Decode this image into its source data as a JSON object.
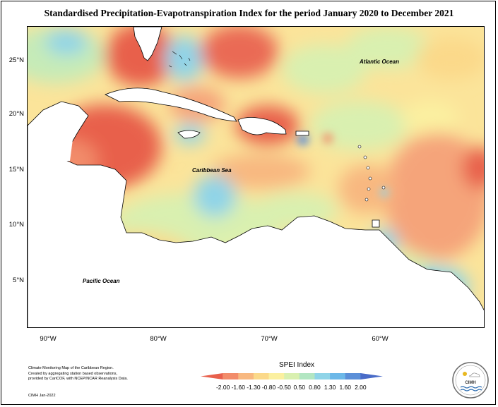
{
  "title": "Standardised Precipitation-Evapotranspiration Index for the period January 2020 to December 2021",
  "map": {
    "lat_labels": [
      "25°N",
      "20°N",
      "15°N",
      "10°N",
      "5°N"
    ],
    "lon_labels": [
      "90°W",
      "80°W",
      "70°W",
      "60°W"
    ],
    "ocean_labels": {
      "atlantic": "Atlantic Ocean",
      "caribbean": "Caribbean Sea",
      "pacific": "Pacific Ocean"
    }
  },
  "legend": {
    "title": "SPEI Index",
    "ticks": [
      "-2.00",
      "-1.60",
      "-1.30",
      "-0.80",
      "-0.50",
      "0.50",
      "0.80",
      "1.30",
      "1.60",
      "2.00"
    ],
    "colors": [
      "#e8604c",
      "#f28c6a",
      "#f8b880",
      "#fbd98a",
      "#fbf0a0",
      "#d9f0b0",
      "#b2e6c2",
      "#8fd4e8",
      "#6cb8e8",
      "#5b8fd8",
      "#4a6cc8"
    ]
  },
  "credits": {
    "lines": [
      "Climate Monitoring Map of the Caribbean Region.",
      "Created by aggregating station based observations,",
      "provided by CariCOF, with NCEP/NCAR Reanalysis Data."
    ],
    "date": "CIMH Jan-2022"
  },
  "logo": {
    "name": "CIMH"
  }
}
